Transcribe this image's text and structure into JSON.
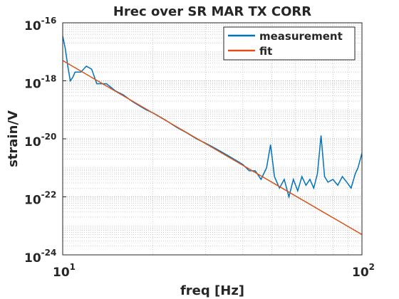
{
  "chart_data": {
    "type": "line",
    "title": "Hrec over SR MAR TX CORR",
    "xlabel": "freq [Hz]",
    "ylabel": "strain/V",
    "xscale": "log",
    "yscale": "log",
    "grid": true,
    "legend": "upper right",
    "xlim": [
      10,
      100
    ],
    "ylim": [
      1e-24,
      1e-16
    ],
    "xticks": [
      {
        "value": 10,
        "label": "10",
        "exponent": "1"
      },
      {
        "value": 100,
        "label": "10",
        "exponent": "2"
      }
    ],
    "yticks": [
      {
        "value": 1e-16,
        "label": "10",
        "exponent": "-16"
      },
      {
        "value": 1e-18,
        "label": "10",
        "exponent": "-18"
      },
      {
        "value": 1e-20,
        "label": "10",
        "exponent": "-20"
      },
      {
        "value": 1e-22,
        "label": "10",
        "exponent": "-22"
      },
      {
        "value": 1e-24,
        "label": "10",
        "exponent": "-24"
      }
    ],
    "series": [
      {
        "name": "measurement",
        "color": "#0072BD",
        "x": [
          10,
          10.2,
          10.4,
          10.6,
          10.8,
          11,
          11.5,
          12,
          12.5,
          13,
          14,
          15,
          16,
          17,
          18,
          19,
          20,
          22,
          24,
          26,
          28,
          30,
          32,
          34,
          36,
          38,
          40,
          42,
          44,
          46,
          48,
          49.5,
          51,
          53,
          55,
          57,
          59,
          61,
          63,
          65,
          67,
          69,
          71,
          73,
          75,
          77,
          80,
          83,
          86,
          89,
          92,
          95,
          97,
          100
        ],
        "values": [
          3.5e-17,
          1.3e-17,
          3.2e-18,
          1e-18,
          1.3e-18,
          2e-18,
          2e-18,
          3.2e-18,
          2.5e-18,
          7.9e-19,
          7.9e-19,
          4.5e-19,
          3.2e-19,
          2e-19,
          1.4e-19,
          1e-19,
          7.9e-20,
          4.5e-20,
          2.5e-20,
          1.6e-20,
          1e-20,
          7.1e-21,
          5e-21,
          3.5e-21,
          2.5e-21,
          1.8e-21,
          1.3e-21,
          7.9e-22,
          7.9e-22,
          4e-22,
          1e-21,
          6.3e-21,
          5e-22,
          2e-22,
          4e-22,
          1e-22,
          4e-22,
          1.6e-22,
          5e-22,
          2.5e-22,
          4e-22,
          2e-22,
          6.3e-22,
          1.3e-20,
          5e-22,
          3.2e-22,
          4e-22,
          2.5e-22,
          5e-22,
          3.2e-22,
          2e-22,
          6.3e-22,
          1e-21,
          3.2e-21
        ]
      },
      {
        "name": "fit",
        "color": "#D95319",
        "x": [
          10,
          20,
          50,
          100
        ],
        "values": [
          5e-18,
          7.8e-20,
          3.2e-22,
          5e-24
        ]
      }
    ]
  }
}
